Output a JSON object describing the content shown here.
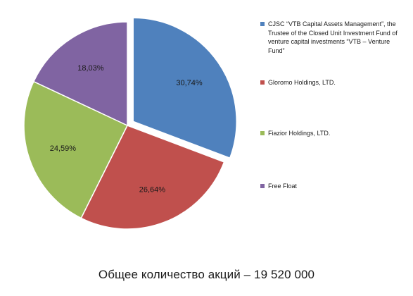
{
  "chart_data": {
    "type": "pie",
    "slices": [
      {
        "label": "CJSC “VTB Capital Assets Management”, the Trustee of the Closed Unit Investment Fund of venture capital investments “VTB – Venture Fund”",
        "value": 30.74,
        "value_label": "30,74%",
        "color": "#4f81bd",
        "exploded": true
      },
      {
        "label": "Gloromo Holdings, LTD.",
        "value": 26.64,
        "value_label": "26,64%",
        "color": "#c0504d",
        "exploded": false
      },
      {
        "label": "Fiazior Holdings, LTD.",
        "value": 24.59,
        "value_label": "24,59%",
        "color": "#9bbb59",
        "exploded": false
      },
      {
        "label": "Free Float",
        "value": 18.03,
        "value_label": "18,03%",
        "color": "#8064a2",
        "exploded": false
      }
    ],
    "legend_position": "right"
  },
  "caption": "Общее количество акций – 19 520 000"
}
